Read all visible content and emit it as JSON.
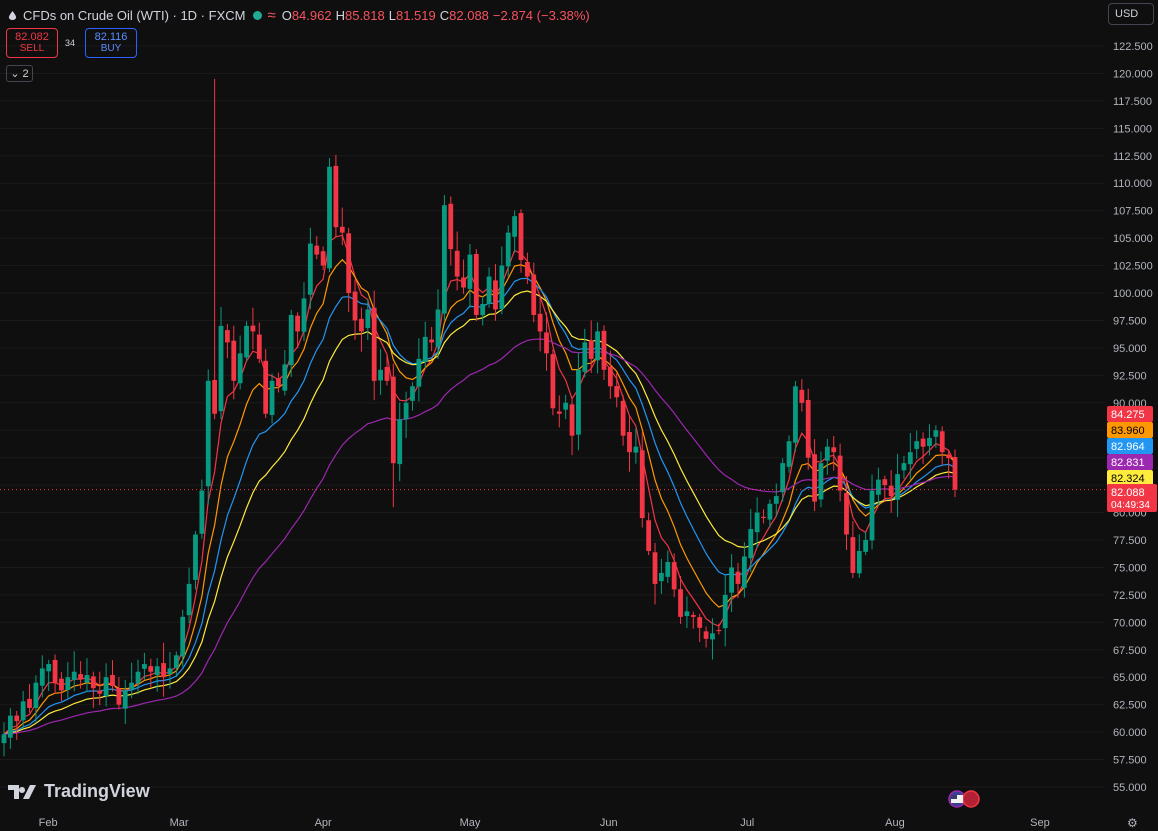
{
  "header": {
    "title": "CFDs on Crude Oil (WTI) · 1D · FXCM",
    "o_label": "O",
    "o_value": "84.962",
    "h_label": "H",
    "h_value": "85.818",
    "l_label": "L",
    "l_value": "81.519",
    "c_label": "C",
    "c_value": "82.088",
    "change": "−2.874 (−3.38%)"
  },
  "trade": {
    "sell_price": "82.082",
    "sell_label": "SELL",
    "spread": "34",
    "buy_price": "82.116",
    "buy_label": "BUY"
  },
  "indicators_count": "2",
  "currency": "USD",
  "branding": "TradingView",
  "colors": {
    "background": "#0f0f0f",
    "up": "#089981",
    "down": "#f23645",
    "ma_red": "#f23645",
    "ma_orange": "#ff9800",
    "ma_blue": "#2196f3",
    "ma_purple": "#9c27b0",
    "ma_yellow": "#ffeb3b"
  },
  "chart_data": {
    "type": "candlestick",
    "ylim": [
      53.5,
      124.5
    ],
    "y_ticks": [
      "55.000",
      "57.500",
      "60.000",
      "62.500",
      "65.000",
      "67.500",
      "70.000",
      "72.500",
      "75.000",
      "77.500",
      "80.000",
      "82.500",
      "85.000",
      "87.500",
      "90.000",
      "92.500",
      "95.000",
      "97.500",
      "100.000",
      "102.500",
      "105.000",
      "107.500",
      "110.000",
      "112.500",
      "115.000",
      "117.500",
      "120.000",
      "122.500"
    ],
    "x_labels": [
      {
        "label": "Feb",
        "date": "2022-02-01"
      },
      {
        "label": "Mar",
        "date": "2022-03-01"
      },
      {
        "label": "Apr",
        "date": "2022-04-01"
      },
      {
        "label": "May",
        "date": "2022-05-02"
      },
      {
        "label": "Jun",
        "date": "2022-06-01"
      },
      {
        "label": "Jul",
        "date": "2022-07-01"
      },
      {
        "label": "Aug",
        "date": "2022-08-01"
      },
      {
        "label": "Sep",
        "date": "2022-09-01"
      }
    ],
    "closes": [
      59.8,
      61.5,
      61.0,
      62.8,
      62.2,
      64.5,
      65.8,
      66.2,
      64.5,
      63.8,
      65.0,
      65.5,
      64.8,
      65.2,
      64.0,
      63.5,
      65.0,
      64.2,
      62.5,
      63.8,
      64.5,
      65.5,
      66.2,
      65.5,
      66.0,
      65.0,
      65.8,
      67.0,
      70.5,
      73.5,
      78.0,
      82.0,
      92.0,
      89.0,
      97.0,
      95.5,
      92.0,
      94.5,
      97.0,
      96.5,
      94.0,
      89.0,
      92.0,
      91.5,
      93.5,
      98.0,
      96.5,
      99.5,
      104.5,
      103.5,
      102.5,
      111.5,
      106.0,
      105.5,
      100.0,
      97.5,
      96.5,
      98.5,
      92.0,
      93.0,
      92.0,
      84.5,
      88.5,
      90.0,
      91.5,
      94.0,
      96.0,
      95.5,
      98.5,
      108.0,
      104.0,
      101.5,
      100.5,
      103.5,
      98.0,
      99.0,
      101.5,
      98.5,
      102.5,
      105.5,
      107.0,
      103.0,
      101.5,
      98.0,
      96.5,
      94.5,
      89.5,
      89.0,
      90.0,
      87.0,
      93.0,
      95.5,
      94.0,
      96.5,
      93.0,
      91.5,
      90.5,
      87.0,
      85.5,
      86.0,
      79.5,
      76.5,
      73.5,
      74.5,
      75.5,
      73.0,
      70.5,
      71.0,
      70.5,
      69.5,
      68.5,
      69.0,
      69.2,
      72.5,
      75.0,
      73.5,
      76.0,
      78.5,
      80.0,
      79.5,
      80.8,
      81.5,
      84.5,
      86.5,
      91.5,
      90.0,
      85.0,
      81.0,
      84.5,
      86.0,
      85.5,
      82.0,
      78.0,
      74.5,
      76.5,
      77.5,
      82.0,
      83.0,
      82.5,
      81.5,
      83.5,
      84.5,
      85.5,
      86.5,
      86.0,
      86.8,
      87.5,
      85.5,
      84.96,
      82.09
    ]
  }
}
